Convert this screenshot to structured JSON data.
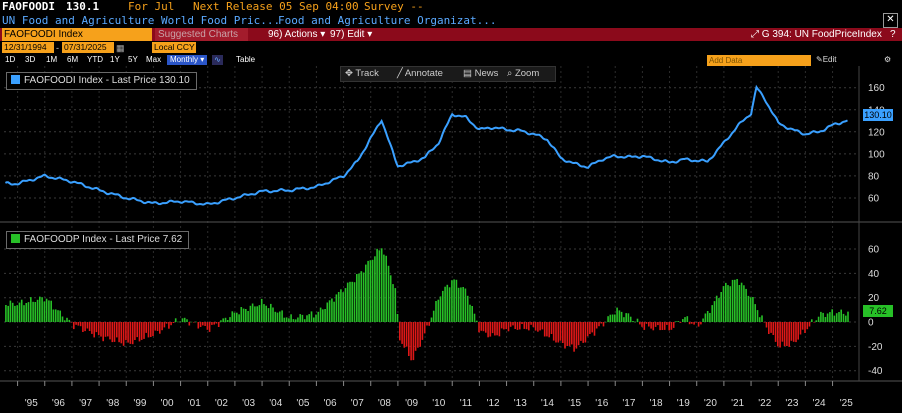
{
  "header": {
    "ticker": "FAOFOODI",
    "price": "130.1",
    "for_label": "For Jul",
    "next_release": "Next Release 05 Sep 04:00",
    "survey": "Survey --",
    "desc1": "UN Food and Agriculture World Food Pric...",
    "desc2": "Food and Agriculture Organizat...",
    "close": "✕"
  },
  "toolbar": {
    "ticker_field": "FAOFOODI Index",
    "suggested": "Suggested Charts",
    "actions": "96) Actions ▾",
    "edit": "97) Edit ▾",
    "chart_id": "G 394: UN FoodPriceIndex",
    "expand": "⤢",
    "help": "?"
  },
  "controls": {
    "start_date": "12/31/1994",
    "end_date": "07/31/2025",
    "currency": "Local CCY",
    "ranges": [
      "1D",
      "3D",
      "1M",
      "6M",
      "YTD",
      "1Y",
      "5Y",
      "Max"
    ],
    "frequency": "Monthly ▾",
    "table": "Table",
    "add_data": "Add Data",
    "edit_chart": "Edit Chart",
    "gear": "⚙"
  },
  "chart_tools": {
    "track": "✥ Track",
    "annotate": "╱ Annotate",
    "news": "▤ News",
    "zoom": "⌕ Zoom"
  },
  "colors": {
    "line": "#3aa0ff",
    "positive": "#27c027",
    "negative": "#e01818"
  },
  "chart_data": [
    {
      "type": "line",
      "legend": "FAOFOODI Index - Last Price 130.10",
      "last_value": "130.10",
      "ylim": [
        40,
        167
      ],
      "yticks": [
        60,
        80,
        100,
        120,
        140,
        160
      ],
      "x": [
        1995,
        1996,
        1997,
        1998,
        1999,
        2000,
        2001,
        2002,
        2003,
        2004,
        2005,
        2006,
        2007,
        2007.5,
        2008,
        2008.4,
        2008.9,
        2009,
        2009.5,
        2010,
        2010.5,
        2011,
        2011.5,
        2012,
        2012.5,
        2013,
        2013.5,
        2014,
        2014.5,
        2015,
        2015.5,
        2016,
        2016.5,
        2017,
        2017.5,
        2018,
        2018.5,
        2019,
        2019.5,
        2020,
        2020.4,
        2021,
        2021.5,
        2022,
        2022.2,
        2022.5,
        2023,
        2023.5,
        2024,
        2024.5,
        2025,
        2025.5
      ],
      "y": [
        73,
        80,
        75,
        67,
        60,
        55,
        57,
        54,
        60,
        66,
        67,
        70,
        80,
        93,
        114,
        131,
        95,
        89,
        92,
        97,
        110,
        136,
        133,
        122,
        124,
        122,
        121,
        118,
        113,
        96,
        91,
        88,
        95,
        98,
        97,
        98,
        95,
        92,
        95,
        94,
        93,
        110,
        125,
        137,
        160,
        150,
        128,
        122,
        118,
        120,
        126,
        130.1
      ]
    },
    {
      "type": "bar",
      "legend": "FAOFOODP Index - Last Price 7.62",
      "last_value": "7.62",
      "ylim": [
        -46,
        74
      ],
      "yticks": [
        -40,
        -20,
        0,
        20,
        40,
        60
      ],
      "x": [
        1995,
        1996,
        1996.5,
        1997,
        1998,
        1999,
        2000,
        2001,
        2002,
        2003,
        2004,
        2005,
        2006,
        2007,
        2007.5,
        2008,
        2008.4,
        2008.9,
        2009,
        2009.5,
        2010,
        2010.5,
        2011,
        2011.5,
        2012,
        2012.5,
        2013,
        2014,
        2015,
        2015.5,
        2016,
        2016.5,
        2017,
        2017.5,
        2018,
        2019,
        2019.5,
        2020,
        2020.5,
        2021,
        2021.5,
        2022,
        2022.5,
        2023,
        2023.5,
        2024,
        2024.5,
        2025,
        2025.5
      ],
      "y": [
        15,
        20,
        8,
        -2,
        -12,
        -18,
        -10,
        3,
        -6,
        8,
        16,
        3,
        7,
        28,
        38,
        52,
        62,
        25,
        -12,
        -32,
        -8,
        22,
        35,
        25,
        -8,
        -12,
        -5,
        -5,
        -18,
        -22,
        -12,
        -2,
        10,
        5,
        -4,
        -6,
        4,
        -4,
        12,
        30,
        35,
        20,
        -3,
        -20,
        -18,
        -6,
        6,
        8,
        7.6
      ]
    }
  ],
  "x_ticks": [
    "'95",
    "'96",
    "'97",
    "'98",
    "'99",
    "'00",
    "'01",
    "'02",
    "'03",
    "'04",
    "'05",
    "'06",
    "'07",
    "'08",
    "'09",
    "'10",
    "'11",
    "'12",
    "'13",
    "'14",
    "'15",
    "'16",
    "'17",
    "'18",
    "'19",
    "'20",
    "'21",
    "'22",
    "'23",
    "'24",
    "'25"
  ]
}
